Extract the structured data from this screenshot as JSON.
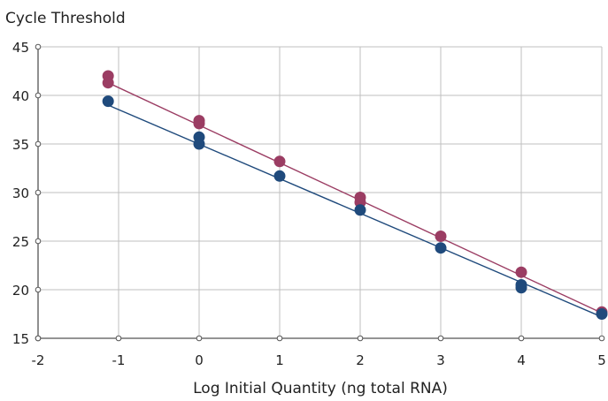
{
  "chart_data": {
    "type": "scatter",
    "title": "",
    "ylabel": "Cycle Threshold",
    "xlabel": "Log Initial Quantity (ng total RNA)",
    "xlim": [
      -2,
      5
    ],
    "ylim": [
      15,
      45
    ],
    "xticks": [
      -2,
      -1,
      0,
      1,
      2,
      3,
      4,
      5
    ],
    "yticks": [
      15,
      20,
      25,
      30,
      35,
      40,
      45
    ],
    "xtick_labels": [
      "-2",
      "-1",
      "0",
      "1",
      "2",
      "3",
      "4",
      "5"
    ],
    "ytick_labels": [
      "15",
      "20",
      "25",
      "30",
      "35",
      "40",
      "45"
    ],
    "grid": true,
    "legend": "none",
    "series": [
      {
        "color": "#9b3d63",
        "points": [
          [
            -1.13,
            42.0
          ],
          [
            -1.13,
            41.3
          ],
          [
            0.0,
            37.4
          ],
          [
            0.0,
            37.1
          ],
          [
            1.0,
            33.2
          ],
          [
            2.0,
            29.5
          ],
          [
            2.0,
            29.0
          ],
          [
            3.0,
            25.5
          ],
          [
            4.0,
            21.8
          ],
          [
            5.0,
            17.7
          ]
        ],
        "trendline": [
          [
            -1.13,
            41.3
          ],
          [
            5.0,
            17.6
          ]
        ]
      },
      {
        "color": "#1f4a7c",
        "points": [
          [
            -1.13,
            39.4
          ],
          [
            0.0,
            35.7
          ],
          [
            0.0,
            35.0
          ],
          [
            1.0,
            31.7
          ],
          [
            2.0,
            28.2
          ],
          [
            3.0,
            24.3
          ],
          [
            4.0,
            20.5
          ],
          [
            4.0,
            20.2
          ],
          [
            5.0,
            17.5
          ]
        ],
        "trendline": [
          [
            -1.13,
            39.0
          ],
          [
            5.0,
            17.2
          ]
        ]
      }
    ]
  }
}
